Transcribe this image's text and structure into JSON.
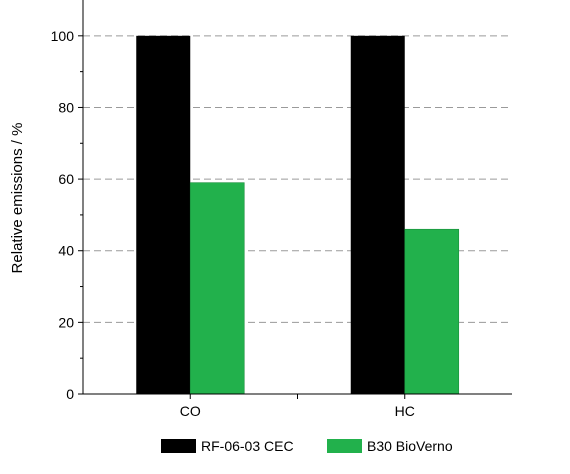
{
  "chart_data": {
    "type": "bar",
    "categories": [
      "CO",
      "HC"
    ],
    "series": [
      {
        "name": "RF-06-03 CEC",
        "values": [
          100,
          100
        ],
        "color": "#000000"
      },
      {
        "name": "B30 BioVerno",
        "values": [
          59,
          46
        ],
        "color": "#22b14c"
      }
    ],
    "ylabel": "Relative emissions / %",
    "ylim": [
      0,
      110
    ],
    "yticks": [
      0,
      20,
      40,
      60,
      80,
      100
    ],
    "grid": "horizontal-dashed",
    "legend": "bottom"
  }
}
